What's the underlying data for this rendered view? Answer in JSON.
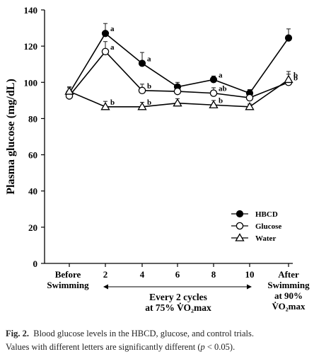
{
  "chart_data": {
    "type": "line",
    "ylabel": "Plasma glucose (mg/dL)",
    "ylim": [
      0,
      140
    ],
    "yticks": [
      0,
      20,
      40,
      60,
      80,
      100,
      120,
      140
    ],
    "x_categories": [
      "Before Swimming",
      "2",
      "4",
      "6",
      "8",
      "10",
      "After Swimming at 90% V̇O₂max"
    ],
    "x_category_lines": [
      [
        "Before",
        "Swimming"
      ],
      [
        "2"
      ],
      [
        "4"
      ],
      [
        "6"
      ],
      [
        "8"
      ],
      [
        "10"
      ],
      [
        "After",
        "Swimming",
        "at 90%",
        "V̇O₂max"
      ]
    ],
    "interval_annotation": [
      "Every 2 cycles",
      "at 75% V̇O₂max"
    ],
    "series": [
      {
        "name": "HBCD",
        "marker": "filled-circle",
        "values": [
          94,
          127,
          110.5,
          97.5,
          101.5,
          94,
          124.5
        ],
        "errors": [
          3,
          5.5,
          6,
          2.5,
          2,
          2,
          5
        ],
        "labels": [
          "",
          "a",
          "a",
          "",
          "a",
          "",
          ""
        ]
      },
      {
        "name": "Glucose",
        "marker": "open-circle",
        "values": [
          92.5,
          117,
          95.5,
          95,
          94,
          91.5,
          100
        ],
        "errors": [
          3,
          5.5,
          3.5,
          2.5,
          3,
          2,
          6
        ],
        "labels": [
          "",
          "a",
          "b",
          "",
          "ab",
          "",
          "b"
        ]
      },
      {
        "name": "Water",
        "marker": "open-triangle",
        "values": [
          95,
          86.5,
          86.5,
          88.5,
          87.5,
          86.5,
          101.5
        ],
        "errors": [
          2.5,
          3,
          2.5,
          2.5,
          2.5,
          1.5,
          3
        ],
        "labels": [
          "",
          "b",
          "b",
          "",
          "b",
          "",
          "b"
        ]
      }
    ],
    "legend": {
      "position": "bottom-right",
      "items": [
        "HBCD",
        "Glucose",
        "Water"
      ]
    }
  },
  "caption": {
    "label": "Fig. 2.",
    "text_line1": "Blood glucose levels in the HBCD, glucose, and control trials.",
    "text_line2_pre": "Values with different letters are significantly different  (",
    "p_symbol": "p",
    "text_line2_post": " < 0.05)."
  }
}
